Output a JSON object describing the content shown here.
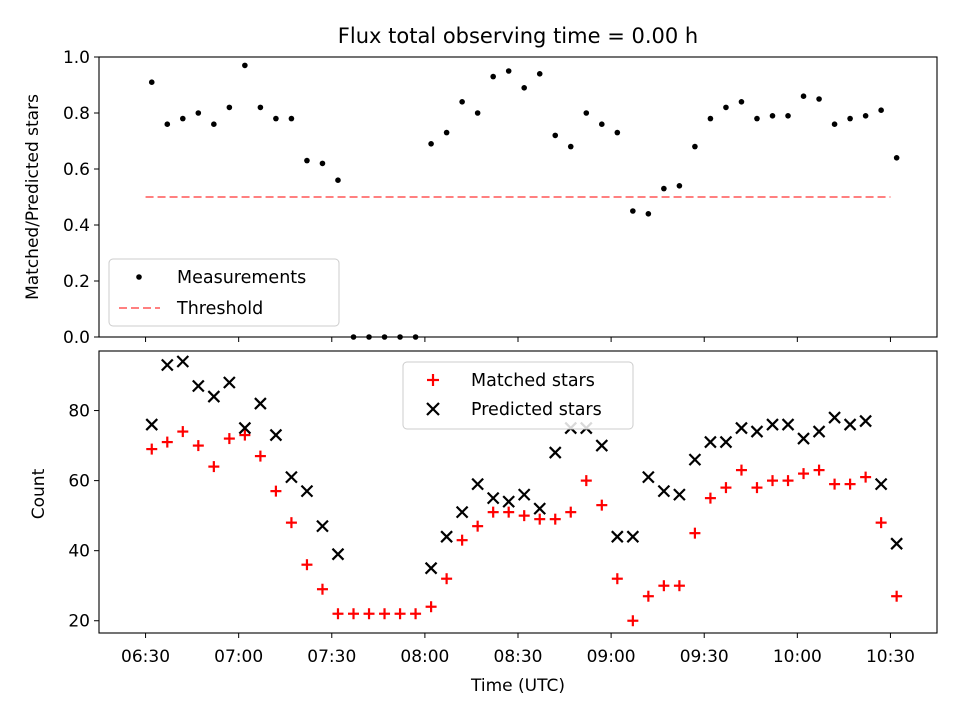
{
  "chart_data": [
    {
      "type": "scatter",
      "title": "Flux total observing time = 0.00 h",
      "xlabel": "",
      "ylabel": "Matched/Predicted stars",
      "ylim": [
        0.0,
        1.0
      ],
      "xlim_minutes": [
        6.25,
        10.75
      ],
      "yticks": [
        "0.0",
        "0.2",
        "0.4",
        "0.6",
        "0.8",
        "1.0"
      ],
      "ytick_values": [
        0.0,
        0.2,
        0.4,
        0.6,
        0.8,
        1.0
      ],
      "legend": {
        "placement": "lower-left",
        "entries": [
          "Measurements",
          "Threshold"
        ]
      },
      "colors": {
        "points": "#000000",
        "threshold": "#ff8080"
      },
      "threshold": {
        "name": "Threshold",
        "value": 0.5,
        "x_start": 6.5,
        "x_end": 10.5
      },
      "series": [
        {
          "name": "Measurements",
          "x": [
            6.5333,
            6.6167,
            6.7,
            6.7833,
            6.8667,
            6.95,
            7.0333,
            7.1167,
            7.2,
            7.2833,
            7.3667,
            7.45,
            7.5333,
            7.6167,
            7.7,
            7.7833,
            7.8667,
            7.95,
            8.0333,
            8.1167,
            8.2,
            8.2833,
            8.3667,
            8.45,
            8.5333,
            8.6167,
            8.7,
            8.7833,
            8.8667,
            8.95,
            9.0333,
            9.1167,
            9.2,
            9.2833,
            9.3667,
            9.45,
            9.5333,
            9.6167,
            9.7,
            9.7833,
            9.8667,
            9.95,
            10.0333,
            10.1167,
            10.2,
            10.2833,
            10.3667,
            10.45,
            10.5333
          ],
          "y": [
            0.91,
            0.76,
            0.78,
            0.8,
            0.76,
            0.82,
            0.97,
            0.82,
            0.78,
            0.78,
            0.63,
            0.62,
            0.56,
            0.0,
            0.0,
            0.0,
            0.0,
            0.0,
            0.69,
            0.73,
            0.84,
            0.8,
            0.93,
            0.95,
            0.89,
            0.94,
            0.72,
            0.68,
            0.8,
            0.76,
            0.73,
            0.45,
            0.44,
            0.53,
            0.54,
            0.68,
            0.78,
            0.82,
            0.84,
            0.78,
            0.79,
            0.79,
            0.86,
            0.85,
            0.76,
            0.78,
            0.79,
            0.81,
            0.64
          ]
        }
      ]
    },
    {
      "type": "scatter",
      "title": "",
      "xlabel": "Time (UTC)",
      "ylabel": "Count",
      "ylim": [
        16.5,
        97.0
      ],
      "xlim_minutes": [
        6.25,
        10.75
      ],
      "yticks": [
        "20",
        "40",
        "60",
        "80"
      ],
      "ytick_values": [
        20,
        40,
        60,
        80
      ],
      "xticks": [
        "06:30",
        "07:00",
        "07:30",
        "08:00",
        "08:30",
        "09:00",
        "09:30",
        "10:00",
        "10:30"
      ],
      "xtick_values": [
        6.5,
        7.0,
        7.5,
        8.0,
        8.5,
        9.0,
        9.5,
        10.0,
        10.5
      ],
      "legend": {
        "placement": "upper-center",
        "entries": [
          "Matched stars",
          "Predicted stars"
        ]
      },
      "colors": {
        "matched": "#ff0000",
        "predicted": "#000000"
      },
      "series": [
        {
          "name": "Matched stars",
          "x": [
            6.5333,
            6.6167,
            6.7,
            6.7833,
            6.8667,
            6.95,
            7.0333,
            7.1167,
            7.2,
            7.2833,
            7.3667,
            7.45,
            7.5333,
            7.6167,
            7.7,
            7.7833,
            7.8667,
            7.95,
            8.0333,
            8.1167,
            8.2,
            8.2833,
            8.3667,
            8.45,
            8.5333,
            8.6167,
            8.7,
            8.7833,
            8.8667,
            8.95,
            9.0333,
            9.1167,
            9.2,
            9.2833,
            9.3667,
            9.45,
            9.5333,
            9.6167,
            9.7,
            9.7833,
            9.8667,
            9.95,
            10.0333,
            10.1167,
            10.2,
            10.2833,
            10.3667,
            10.45,
            10.5333
          ],
          "y": [
            69,
            71,
            74,
            70,
            64,
            72,
            73,
            67,
            57,
            48,
            36,
            29,
            22,
            22,
            22,
            22,
            22,
            22,
            24,
            32,
            43,
            47,
            51,
            51,
            50,
            49,
            49,
            51,
            60,
            53,
            32,
            20,
            27,
            30,
            30,
            45,
            55,
            58,
            63,
            58,
            60,
            60,
            62,
            63,
            59,
            59,
            61,
            48,
            27
          ]
        },
        {
          "name": "Predicted stars",
          "x": [
            6.5333,
            6.6167,
            6.7,
            6.7833,
            6.8667,
            6.95,
            7.0333,
            7.1167,
            7.2,
            7.2833,
            7.3667,
            7.45,
            7.5333,
            8.0333,
            8.1167,
            8.2,
            8.2833,
            8.3667,
            8.45,
            8.5333,
            8.6167,
            8.7,
            8.7833,
            8.8667,
            8.95,
            9.0333,
            9.1167,
            9.2,
            9.2833,
            9.3667,
            9.45,
            9.5333,
            9.6167,
            9.7,
            9.7833,
            9.8667,
            9.95,
            10.0333,
            10.1167,
            10.2,
            10.2833,
            10.3667,
            10.45,
            10.5333
          ],
          "y": [
            76,
            93,
            94,
            87,
            84,
            88,
            75,
            82,
            73,
            61,
            57,
            47,
            39,
            35,
            44,
            51,
            59,
            55,
            54,
            56,
            52,
            68,
            75,
            75,
            70,
            44,
            44,
            61,
            57,
            56,
            66,
            71,
            71,
            75,
            74,
            76,
            76,
            72,
            74,
            78,
            76,
            77,
            59,
            42
          ]
        }
      ]
    }
  ]
}
